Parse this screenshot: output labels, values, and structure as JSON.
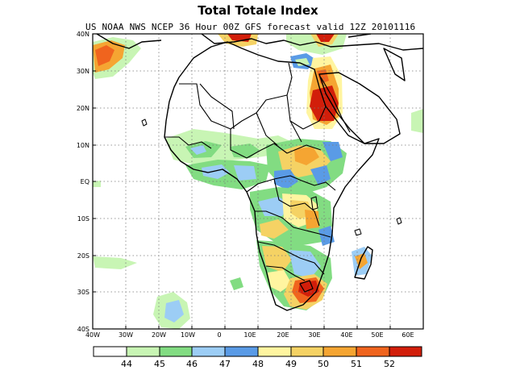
{
  "title": "Total Totale Index",
  "subtitle": "US NOAA NWS NCEP 36 Hour 00Z GFS forecast valid 12Z 20101116",
  "map": {
    "lon_labels": [
      "40W",
      "30W",
      "20W",
      "10W",
      "0",
      "10E",
      "20E",
      "30E",
      "40E",
      "50E",
      "60E"
    ],
    "lat_labels": [
      "40N",
      "30N",
      "20N",
      "10N",
      "EQ",
      "10S",
      "20S",
      "30S",
      "40S"
    ],
    "lon_range": [
      -40,
      60
    ],
    "lat_range": [
      -40,
      40
    ],
    "gridlines": "dotted"
  },
  "colorbar": {
    "labels": [
      "44",
      "45",
      "46",
      "47",
      "48",
      "49",
      "50",
      "51",
      "52"
    ],
    "colors": [
      "#ffffff",
      "#c8f5b4",
      "#82dc82",
      "#9ccdf5",
      "#5a9be6",
      "#fff5a0",
      "#f5d264",
      "#f5a532",
      "#f0641e",
      "#d21e0a"
    ]
  }
}
